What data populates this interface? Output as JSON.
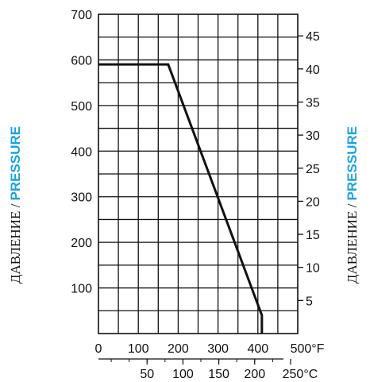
{
  "chart_data": {
    "type": "line",
    "title": "",
    "ylabel_ru": "ДАВЛЕНИЕ",
    "ylabel_separator": " / ",
    "ylabel_en": "PRESSURE",
    "x_primary": {
      "unit": "°F",
      "ticks": [
        0,
        100,
        200,
        300,
        400,
        500
      ],
      "range": [
        0,
        500
      ]
    },
    "x_secondary": {
      "unit": "°C",
      "ticks": [
        50,
        100,
        150,
        200,
        250
      ]
    },
    "y_left": {
      "ticks": [
        100,
        200,
        300,
        400,
        500,
        600,
        700
      ],
      "range": [
        0,
        700
      ]
    },
    "y_right": {
      "ticks": [
        5,
        10,
        15,
        20,
        25,
        30,
        35,
        40,
        45
      ]
    },
    "grid": true,
    "series": [
      {
        "x": [
          0,
          175,
          410,
          410
        ],
        "y": [
          590,
          590,
          40,
          0
        ]
      }
    ],
    "colors": {
      "line": "#111111",
      "grid": "#111111",
      "accent": "#1aa3e0"
    }
  }
}
